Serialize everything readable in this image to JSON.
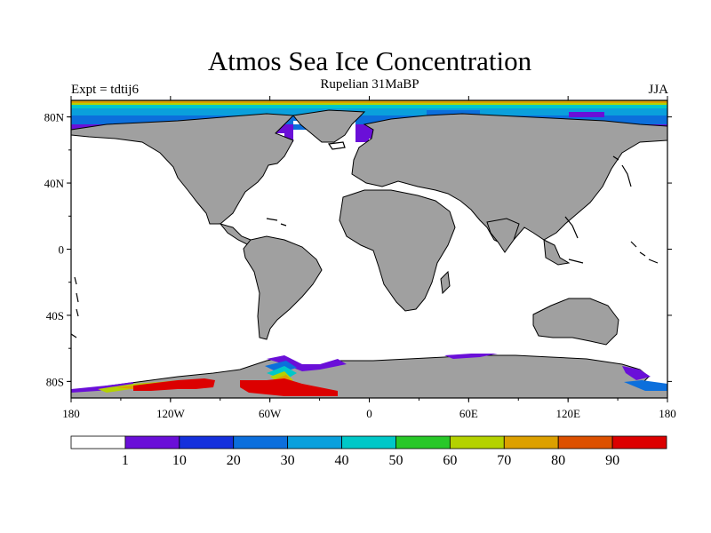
{
  "header": {
    "title": "Atmos Sea Ice Concentration",
    "subtitle": "Rupelian  31MaBP",
    "left_label": "Expt = tdtij6",
    "right_label": "JJA"
  },
  "map": {
    "projection": "cylindrical-equidistant",
    "lon_range": [
      -180,
      180
    ],
    "lat_range": [
      -90,
      90
    ],
    "land_color": "#a0a0a0",
    "ocean_color": "#ffffff",
    "y_ticks": [
      {
        "value": 80,
        "label": "80N"
      },
      {
        "value": 40,
        "label": "40N"
      },
      {
        "value": 0,
        "label": "0"
      },
      {
        "value": -40,
        "label": "40S"
      },
      {
        "value": -80,
        "label": "80S"
      }
    ],
    "x_ticks": [
      {
        "value": -180,
        "label": "180"
      },
      {
        "value": -120,
        "label": "120W"
      },
      {
        "value": -60,
        "label": "60W"
      },
      {
        "value": 0,
        "label": "0"
      },
      {
        "value": 60,
        "label": "60E"
      },
      {
        "value": 120,
        "label": "120E"
      },
      {
        "value": 180,
        "label": "180"
      }
    ]
  },
  "colorbar": {
    "colors": [
      "#ffffff",
      "#6a0fd8",
      "#1530dc",
      "#0c6fdc",
      "#0aa0dc",
      "#00c8c8",
      "#28c828",
      "#b4d200",
      "#dca000",
      "#dc5000",
      "#dc0000"
    ],
    "labels": [
      "1",
      "10",
      "20",
      "30",
      "40",
      "50",
      "60",
      "70",
      "80",
      "90"
    ]
  }
}
